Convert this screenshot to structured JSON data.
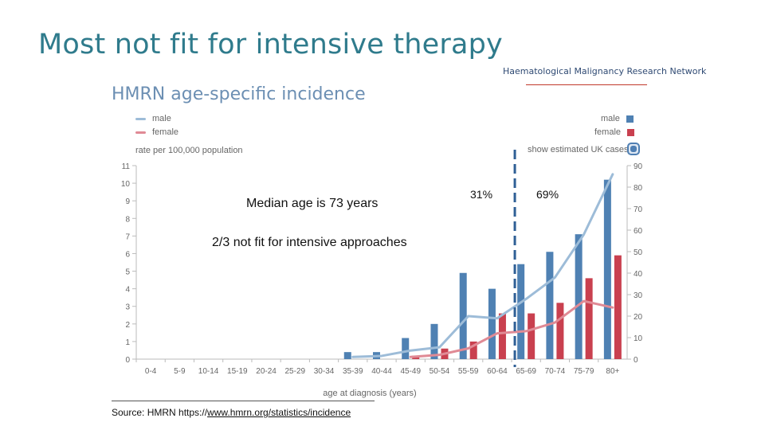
{
  "slide": {
    "title": "Most not fit for intensive therapy",
    "org": "Haematological Malignancy Research Network"
  },
  "annotations": {
    "median": "Median age is 73 years",
    "not_fit": "2/3 not fit for intensive  approaches",
    "left_pct": "31%",
    "right_pct": "69%"
  },
  "source": {
    "prefix": "Source: HMRN https://",
    "link": "www.hmrn.org/statistics/incidence"
  },
  "chart_data": {
    "type": "bar+line",
    "title": "HMRN age-specific incidence",
    "legend_lines": [
      {
        "name": "male",
        "color": "#9dbcd8"
      },
      {
        "name": "female",
        "color": "#e08a95"
      }
    ],
    "legend_bars": [
      {
        "name": "male",
        "color": "#4f81b3"
      },
      {
        "name": "female",
        "color": "#c9404f"
      }
    ],
    "ylabel": "rate per 100,000 population",
    "xlabel": "age at diagnosis (years)",
    "toggle_label": "show estimated UK cases",
    "categories": [
      "0-4",
      "5-9",
      "10-14",
      "15-19",
      "20-24",
      "25-29",
      "30-34",
      "35-39",
      "40-44",
      "45-49",
      "50-54",
      "55-59",
      "60-64",
      "65-69",
      "70-74",
      "75-79",
      "80+"
    ],
    "left_axis": {
      "ylim": [
        0,
        11
      ],
      "ticks": [
        "0",
        "1",
        "2",
        "3",
        "4",
        "5",
        "6",
        "7",
        "8",
        "9",
        "10",
        "11"
      ]
    },
    "right_axis": {
      "ylim": [
        0,
        90
      ],
      "ticks": [
        "0",
        "10",
        "20",
        "30",
        "40",
        "50",
        "60",
        "70",
        "80",
        "90"
      ]
    },
    "series": [
      {
        "name": "male cases",
        "kind": "bar",
        "axis": "left",
        "color": "#4f81b3",
        "values": [
          0,
          0,
          0,
          0,
          0,
          0,
          0,
          0.4,
          0.4,
          1.2,
          2.0,
          4.9,
          4.0,
          5.4,
          6.1,
          7.1,
          10.2
        ]
      },
      {
        "name": "female cases",
        "kind": "bar",
        "axis": "left",
        "color": "#c9404f",
        "values": [
          0,
          0,
          0,
          0,
          0,
          0,
          0,
          0,
          0,
          0.2,
          0.6,
          1.0,
          2.6,
          2.6,
          3.2,
          4.6,
          5.9
        ]
      },
      {
        "name": "male rate",
        "kind": "line",
        "axis": "right",
        "color": "#9dbcd8",
        "values": [
          null,
          null,
          null,
          null,
          null,
          null,
          null,
          1,
          1.5,
          4,
          5.5,
          20,
          19,
          28,
          38,
          58,
          86
        ]
      },
      {
        "name": "female rate",
        "kind": "line",
        "axis": "right",
        "color": "#e08a95",
        "values": [
          null,
          null,
          null,
          null,
          null,
          null,
          null,
          null,
          null,
          1,
          2,
          5,
          12,
          13,
          17,
          27,
          24
        ]
      }
    ],
    "median_marker_category": "65-69"
  }
}
